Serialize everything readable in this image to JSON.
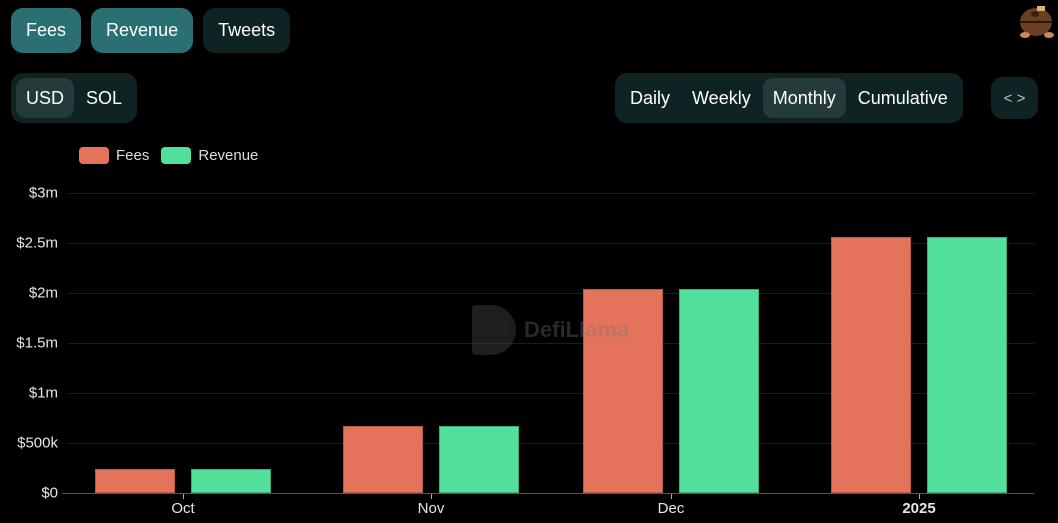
{
  "tabs": [
    {
      "label": "Fees",
      "state": "active"
    },
    {
      "label": "Revenue",
      "state": "active"
    },
    {
      "label": "Tweets",
      "state": "inactive"
    }
  ],
  "currency_toggle": {
    "options": [
      "USD",
      "SOL"
    ],
    "selected": "USD"
  },
  "period_toggle": {
    "options": [
      "Daily",
      "Weekly",
      "Monthly",
      "Cumulative"
    ],
    "selected": "Monthly"
  },
  "embed_button": {
    "icon": "code-icon",
    "glyph": "< >"
  },
  "watermark": {
    "text": "DefiLlama"
  },
  "colors": {
    "fees": "#e3735a",
    "revenue": "#52e09c",
    "tab_active": "#2a7073",
    "panel_bg": "#0f2324",
    "selected_bg": "#253a3b"
  },
  "chart_data": {
    "type": "bar",
    "title": "",
    "xlabel": "",
    "ylabel": "",
    "categories": [
      "Oct",
      "Nov",
      "Dec",
      "2025"
    ],
    "series": [
      {
        "name": "Fees",
        "color": "#e3735a",
        "values": [
          240000,
          670000,
          2040000,
          2560000
        ]
      },
      {
        "name": "Revenue",
        "color": "#52e09c",
        "values": [
          240000,
          670000,
          2040000,
          2560000
        ]
      }
    ],
    "y_ticks": [
      "$0",
      "$500k",
      "$1m",
      "$1.5m",
      "$2m",
      "$2.5m",
      "$3m"
    ],
    "ylim": [
      0,
      3000000
    ],
    "grid": true,
    "legend_position": "top-left"
  }
}
